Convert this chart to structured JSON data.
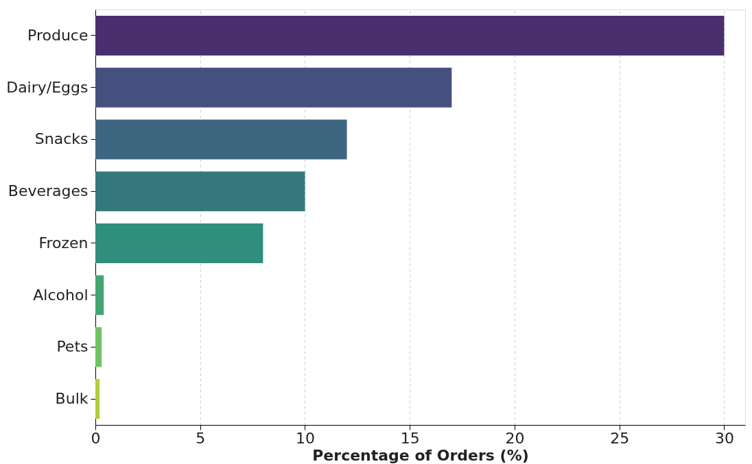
{
  "chart_data": {
    "type": "bar",
    "orientation": "horizontal",
    "xlabel": "Percentage of Orders (%)",
    "categories": [
      "Produce",
      "Dairy/Eggs",
      "Snacks",
      "Beverages",
      "Frozen",
      "Alcohol",
      "Pets",
      "Bulk"
    ],
    "values": [
      30,
      17,
      12,
      10,
      8,
      0.4,
      0.3,
      0.2
    ],
    "colors": [
      "#4a2f6e",
      "#46507f",
      "#3e6680",
      "#34787e",
      "#2f8f7c",
      "#43a573",
      "#6fc363",
      "#b0cd40"
    ],
    "xlim": [
      0,
      31
    ],
    "xticks": [
      0,
      5,
      10,
      15,
      20,
      25,
      30
    ],
    "grid": "x"
  }
}
